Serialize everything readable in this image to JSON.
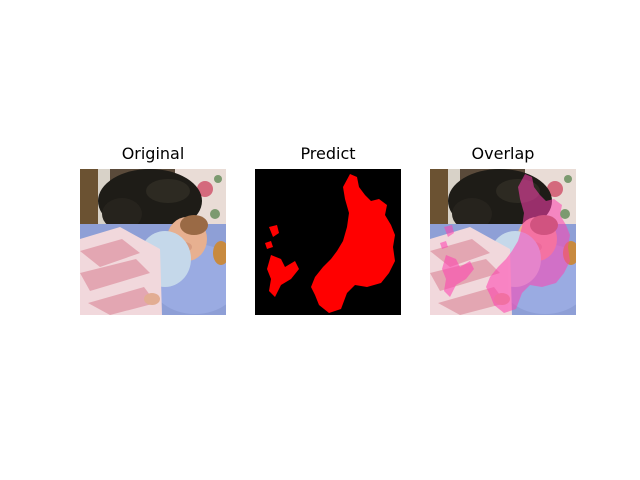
{
  "figure": {
    "panels": [
      {
        "title": "Original"
      },
      {
        "title": "Predict"
      },
      {
        "title": "Overlap"
      }
    ]
  },
  "colors": {
    "mask": "#ff0000",
    "background": "#000000",
    "overlay_tint": "#ff3fb0"
  }
}
